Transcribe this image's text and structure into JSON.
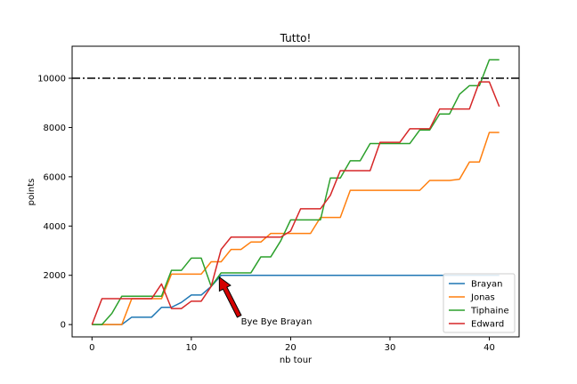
{
  "chart_data": {
    "type": "line",
    "title": "Tutto!",
    "xlabel": "nb tour",
    "ylabel": "points",
    "xlim": [
      -2,
      43
    ],
    "ylim": [
      -500,
      11300
    ],
    "xticks": [
      0,
      10,
      20,
      30,
      40
    ],
    "yticks": [
      0,
      2000,
      4000,
      6000,
      8000,
      10000
    ],
    "grid": false,
    "legend_position": "lower-right",
    "hline": {
      "y": 10000,
      "color": "#000000",
      "style": "dashdot"
    },
    "annotation": {
      "text": "Bye Bye Brayan",
      "xy": [
        13,
        2000
      ],
      "xytext": [
        15,
        50
      ]
    },
    "series": [
      {
        "name": "Brayan",
        "color": "#1f77b4",
        "x": [
          0,
          1,
          2,
          3,
          4,
          5,
          6,
          7,
          8,
          9,
          10,
          11,
          12,
          13,
          14,
          15,
          16,
          17,
          18,
          19,
          20,
          21,
          22,
          23,
          24,
          25,
          26,
          27,
          28,
          29,
          30,
          31,
          32,
          33,
          34,
          35,
          36,
          37,
          38,
          39,
          40,
          41
        ],
        "values": [
          0,
          0,
          0,
          0,
          300,
          300,
          300,
          700,
          700,
          900,
          1200,
          1200,
          1550,
          2000,
          2000,
          2000,
          2000,
          2000,
          2000,
          2000,
          2000,
          2000,
          2000,
          2000,
          2000,
          2000,
          2000,
          2000,
          2000,
          2000,
          2000,
          2000,
          2000,
          2000,
          2000,
          2000,
          2000,
          2000,
          2000,
          2000,
          2000,
          2000
        ]
      },
      {
        "name": "Jonas",
        "color": "#ff7f0e",
        "x": [
          0,
          1,
          2,
          3,
          4,
          5,
          6,
          7,
          8,
          9,
          10,
          11,
          12,
          13,
          14,
          15,
          16,
          17,
          18,
          19,
          20,
          21,
          22,
          23,
          24,
          25,
          26,
          27,
          28,
          29,
          30,
          31,
          32,
          33,
          34,
          35,
          36,
          37,
          38,
          39,
          40,
          41
        ],
        "values": [
          0,
          0,
          0,
          0,
          1050,
          1050,
          1050,
          1050,
          2050,
          2050,
          2050,
          2050,
          2550,
          2550,
          3050,
          3050,
          3350,
          3350,
          3700,
          3700,
          3700,
          3700,
          3700,
          4350,
          4350,
          4350,
          5450,
          5450,
          5450,
          5450,
          5450,
          5450,
          5450,
          5450,
          5850,
          5850,
          5850,
          5900,
          6600,
          6600,
          7800,
          7800
        ]
      },
      {
        "name": "Tiphaine",
        "color": "#2ca02c",
        "x": [
          0,
          1,
          2,
          3,
          4,
          5,
          6,
          7,
          8,
          9,
          10,
          11,
          12,
          13,
          14,
          15,
          16,
          17,
          18,
          19,
          20,
          21,
          22,
          23,
          24,
          25,
          26,
          27,
          28,
          29,
          30,
          31,
          32,
          33,
          34,
          35,
          36,
          37,
          38,
          39,
          40,
          41
        ],
        "values": [
          0,
          0,
          450,
          1150,
          1150,
          1150,
          1150,
          1150,
          2200,
          2200,
          2700,
          2700,
          1550,
          2100,
          2100,
          2100,
          2100,
          2750,
          2750,
          3400,
          4250,
          4250,
          4250,
          4250,
          5950,
          5950,
          6650,
          6650,
          7350,
          7350,
          7350,
          7350,
          7350,
          7900,
          7900,
          8550,
          8550,
          9350,
          9700,
          9700,
          10750,
          10750
        ]
      },
      {
        "name": "Edward",
        "color": "#d62728",
        "x": [
          0,
          1,
          2,
          3,
          4,
          5,
          6,
          7,
          8,
          9,
          10,
          11,
          12,
          13,
          14,
          15,
          16,
          17,
          18,
          19,
          20,
          21,
          22,
          23,
          24,
          25,
          26,
          27,
          28,
          29,
          30,
          31,
          32,
          33,
          34,
          35,
          36,
          37,
          38,
          39,
          40,
          41
        ],
        "values": [
          0,
          1050,
          1050,
          1050,
          1050,
          1050,
          1050,
          1650,
          650,
          650,
          950,
          950,
          1550,
          3050,
          3550,
          3550,
          3550,
          3550,
          3550,
          3550,
          3800,
          4700,
          4700,
          4700,
          5250,
          6250,
          6250,
          6250,
          6250,
          7400,
          7400,
          7400,
          7950,
          7950,
          7950,
          8750,
          8750,
          8750,
          8750,
          9850,
          9850,
          8850
        ]
      }
    ]
  }
}
